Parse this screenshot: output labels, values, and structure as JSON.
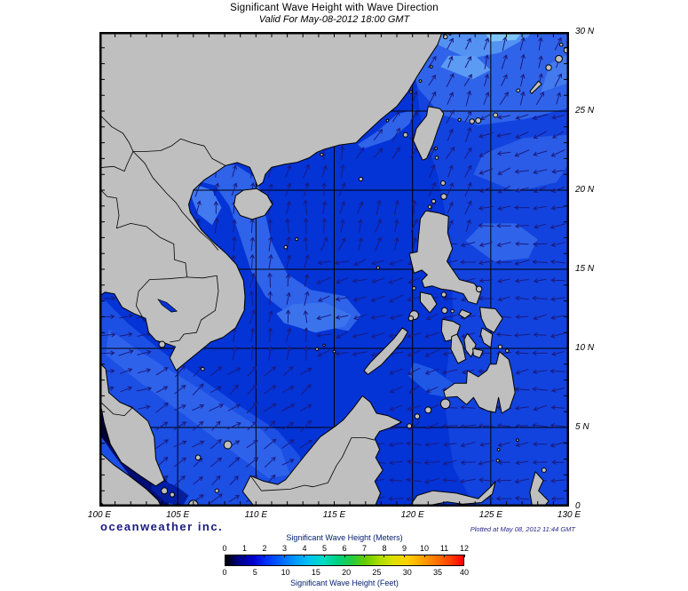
{
  "header": {
    "title": "Significant Wave Height with Wave Direction",
    "subtitle": "Valid For May-08-2012 18:00 GMT"
  },
  "footer": {
    "branding": "oceanweather inc.",
    "plotted_at": "Plotted at May 08, 2012 11:44 GMT"
  },
  "map": {
    "extent": {
      "lon_min": 100,
      "lon_max": 130,
      "lat_min": 0,
      "lat_max": 30
    },
    "grid_interval_deg": 5,
    "lon_tick_labels": [
      {
        "lon": 100,
        "label": "100 E"
      },
      {
        "lon": 105,
        "label": "105 E"
      },
      {
        "lon": 110,
        "label": "110 E"
      },
      {
        "lon": 115,
        "label": "115 E"
      },
      {
        "lon": 120,
        "label": "120 E"
      },
      {
        "lon": 125,
        "label": "125 E"
      },
      {
        "lon": 130,
        "label": "130 E"
      }
    ],
    "lat_tick_labels": [
      {
        "lat": 30,
        "label": "30 N"
      },
      {
        "lat": 25,
        "label": "25 N"
      },
      {
        "lat": 20,
        "label": "20 N"
      },
      {
        "lat": 15,
        "label": "15 N"
      },
      {
        "lat": 10,
        "label": "10 N"
      },
      {
        "lat": 5,
        "label": "5 N"
      },
      {
        "lat": 0,
        "label": "0"
      }
    ],
    "land_color": "#bfbfbf",
    "coast_color": "#000000",
    "ocean_base_color": "#0433d6",
    "arrow_color": "#1b1b7e",
    "grid_color": "#000000",
    "wave_direction_zones": [
      {
        "name": "gulf-of-thailand",
        "lon": [
          100.2,
          103.7
        ],
        "lat": [
          6.0,
          13.4
        ],
        "dir_deg": 12
      },
      {
        "name": "gulf-of-tonkin",
        "lon": [
          105.5,
          110.0
        ],
        "lat": [
          17.0,
          21.7
        ],
        "dir_deg": 80
      },
      {
        "name": "taiwan-strait",
        "lon": [
          116.6,
          120.4
        ],
        "lat": [
          21.8,
          25.2
        ],
        "dir_deg": 50
      },
      {
        "name": "east-china-sea-northeast",
        "lon": [
          116.6,
          130.0
        ],
        "lat": [
          25.2,
          30.0
        ],
        "dir_deg": 68
      },
      {
        "name": "east-of-taiwan",
        "lon": [
          120.4,
          124.5
        ],
        "lat": [
          21.0,
          25.2
        ],
        "dir_deg": 62
      },
      {
        "name": "luzon-strait-pacific",
        "lon": [
          124.5,
          130.0
        ],
        "lat": [
          19.0,
          25.2
        ],
        "dir_deg": 197
      },
      {
        "name": "west-philippine-sea-north",
        "lon": [
          120.4,
          124.5
        ],
        "lat": [
          17.5,
          21.0
        ],
        "dir_deg": 70
      },
      {
        "name": "philippine-sea",
        "lon": [
          121.8,
          130.0
        ],
        "lat": [
          4.8,
          19.0
        ],
        "dir_deg": 186
      },
      {
        "name": "sulu-sea",
        "lon": [
          118.2,
          122.4
        ],
        "lat": [
          4.8,
          9.6
        ],
        "dir_deg": 206
      },
      {
        "name": "celebes-sea",
        "lon": [
          116.8,
          130.0
        ],
        "lat": [
          0.0,
          4.8
        ],
        "dir_deg": 184
      },
      {
        "name": "scs-north",
        "lon": [
          109.8,
          116.6
        ],
        "lat": [
          20.0,
          22.8
        ],
        "dir_deg": 78
      },
      {
        "name": "scs-west",
        "lon": [
          107.8,
          113.5
        ],
        "lat": [
          9.6,
          20.0
        ],
        "dir_deg": 86
      },
      {
        "name": "scs-east-upper",
        "lon": [
          113.5,
          120.4
        ],
        "lat": [
          15.5,
          20.0
        ],
        "dir_deg": 75
      },
      {
        "name": "scs-central",
        "lon": [
          113.5,
          120.4
        ],
        "lat": [
          9.6,
          15.5
        ],
        "dir_deg": 197
      },
      {
        "name": "scs-south-sunda-shelf",
        "lon": [
          103.7,
          113.5
        ],
        "lat": [
          0.0,
          9.6
        ],
        "dir_deg": 36
      },
      {
        "name": "visayan-seas",
        "lon": [
          120.4,
          121.8
        ],
        "lat": [
          9.6,
          14.2
        ],
        "dir_deg": 205
      }
    ]
  },
  "legend": {
    "meters_title": "Significant Wave Height (Meters)",
    "meters_ticks": [
      0,
      1,
      2,
      3,
      4,
      5,
      6,
      7,
      8,
      9,
      10,
      11,
      12
    ],
    "feet_title": "Significant Wave Height (Feet)",
    "feet_ticks": [
      0,
      5,
      10,
      15,
      20,
      25,
      30,
      35,
      40
    ],
    "meters_per_foot": 0.3048,
    "gradient_stops": [
      "#000000",
      "#00008b",
      "#0000cd",
      "#0033ff",
      "#0066ff",
      "#0099ff",
      "#00c4f0",
      "#00ddc0",
      "#00d080",
      "#22cc44",
      "#66cc00",
      "#aadd00",
      "#dde000",
      "#ffd000",
      "#ffa500",
      "#ff7700",
      "#ff4400",
      "#ff0000"
    ]
  }
}
